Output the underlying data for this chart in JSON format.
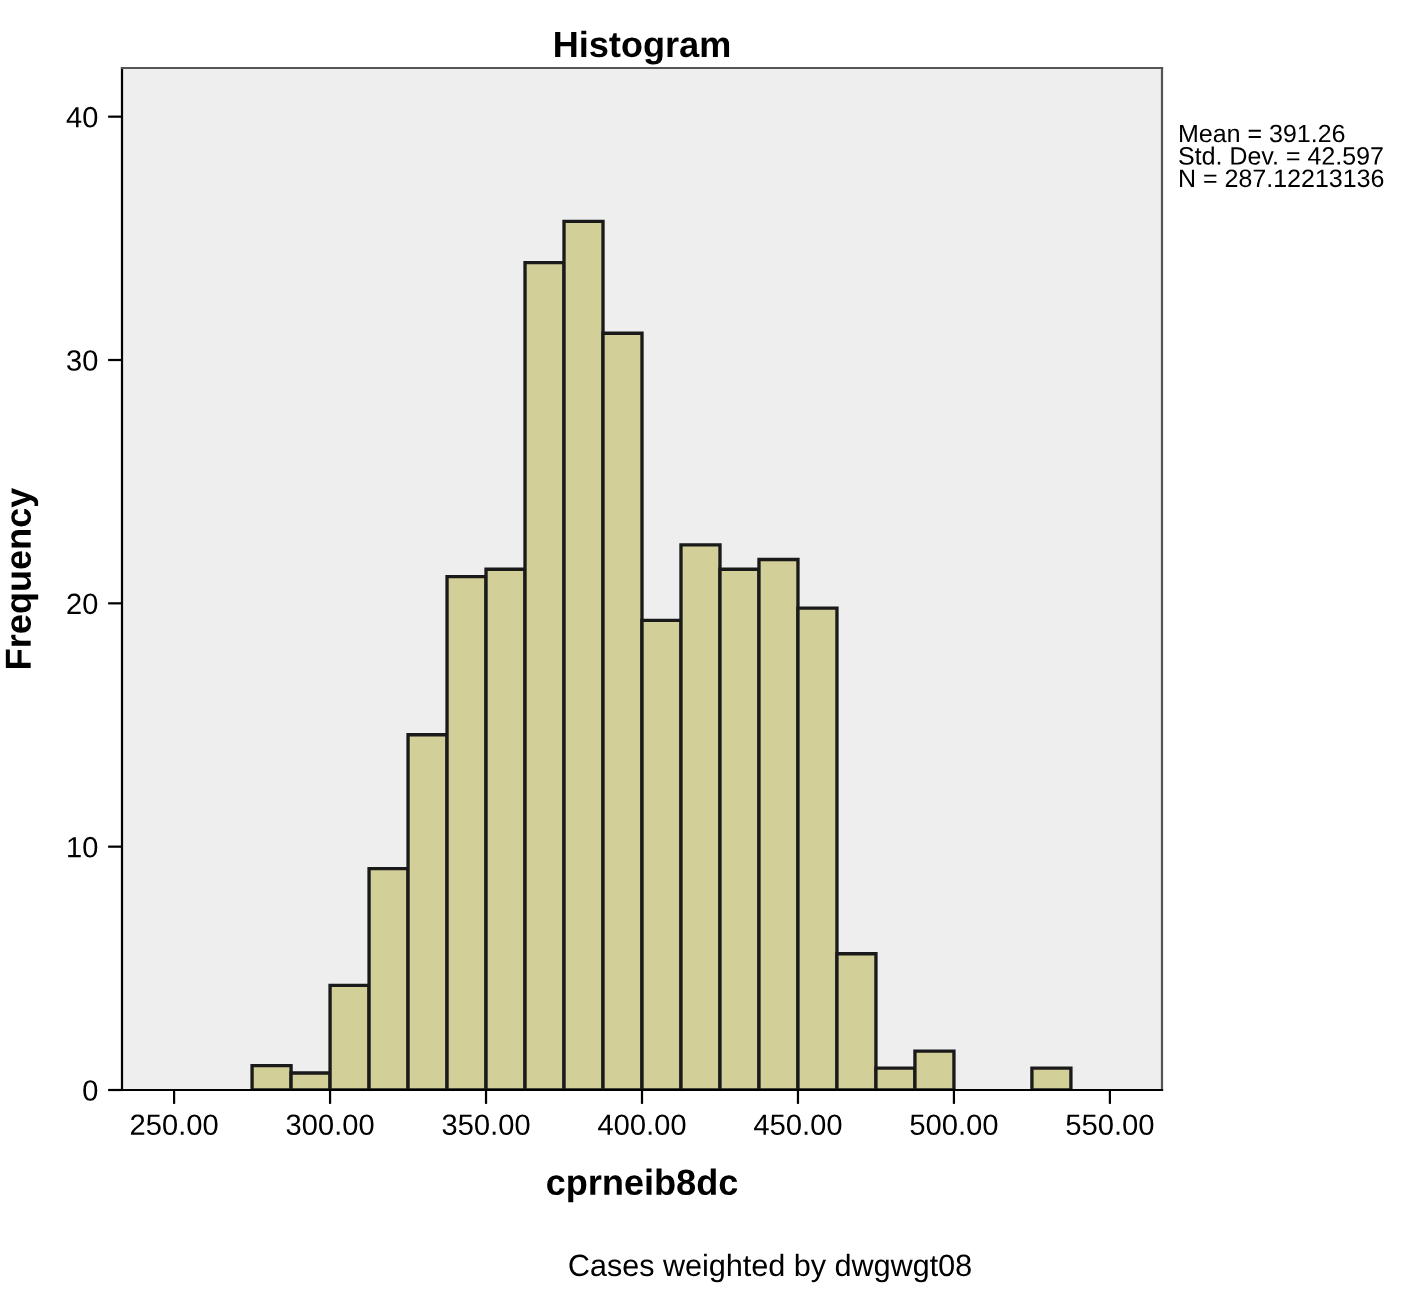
{
  "chart_data": {
    "type": "histogram",
    "title": "Histogram",
    "xlabel": "cprneib8dc",
    "ylabel": "Frequency",
    "bins": [
      275,
      287.5,
      300,
      312.5,
      325,
      337.5,
      350,
      362.5,
      375,
      387.5,
      400,
      412.5,
      425,
      437.5,
      450,
      462.5,
      475,
      487.5,
      500,
      512.5,
      525,
      537.5
    ],
    "values": [
      1.0,
      0.7,
      4.3,
      9.1,
      14.6,
      21.1,
      21.4,
      34.0,
      35.7,
      31.1,
      19.3,
      22.4,
      21.4,
      21.8,
      19.8,
      5.6,
      0.9,
      1.6,
      0,
      0,
      0.9
    ],
    "color": "#d3cf99",
    "xlim": [
      233.3,
      566.7
    ],
    "xticks": [
      {
        "value": 250,
        "label": "250.00"
      },
      {
        "value": 300,
        "label": "300.00"
      },
      {
        "value": 350,
        "label": "350.00"
      },
      {
        "value": 400,
        "label": "400.00"
      },
      {
        "value": 450,
        "label": "450.00"
      },
      {
        "value": 500,
        "label": "500.00"
      },
      {
        "value": 550,
        "label": "550.00"
      }
    ],
    "ylim": [
      0,
      42
    ],
    "yticks": [
      0,
      10,
      20,
      30,
      40
    ],
    "grid": false,
    "legend": false,
    "annotations": [
      "Mean = 391.26\nStd. Dev. = 42.597\nN = 287.12213136",
      "Cases weighted by dwgwgt08"
    ]
  }
}
